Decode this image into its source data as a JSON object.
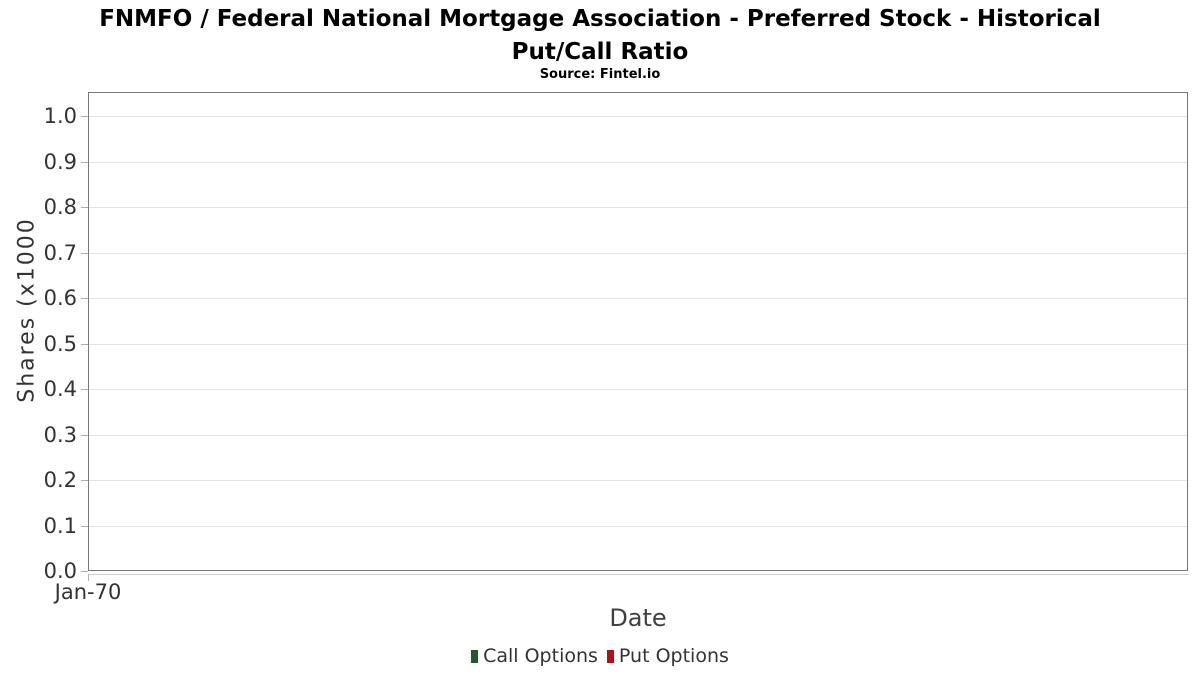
{
  "header": {
    "title_lines": [
      "FNMFO / Federal National Mortgage Association - Preferred Stock - Historical",
      "Put/Call Ratio"
    ],
    "source": "Source: Fintel.io"
  },
  "chart_data": {
    "type": "bar",
    "title": "FNMFO / Federal National Mortgage Association - Preferred Stock - Historical Put/Call Ratio",
    "subtitle": "Source: Fintel.io",
    "xlabel": "Date",
    "ylabel": "Shares (x1000",
    "ylim": [
      0,
      1.053
    ],
    "yticks": [
      0.0,
      0.1,
      0.2,
      0.3,
      0.4,
      0.5,
      0.6,
      0.7,
      0.8,
      0.9,
      1.0
    ],
    "x_tick_labels": [
      "Jan-70"
    ],
    "grid": true,
    "legend_position": "bottom",
    "series": [
      {
        "name": "Call Options",
        "color": "#25582e",
        "values": []
      },
      {
        "name": "Put Options",
        "color": "#b01116",
        "values": []
      }
    ]
  },
  "colors": {
    "plot_border": "#7a7a7a",
    "gridline": "#e4e4e4",
    "tick": "#b0b0b0",
    "axis_line": "#cccccc",
    "label_text": "#333333"
  }
}
